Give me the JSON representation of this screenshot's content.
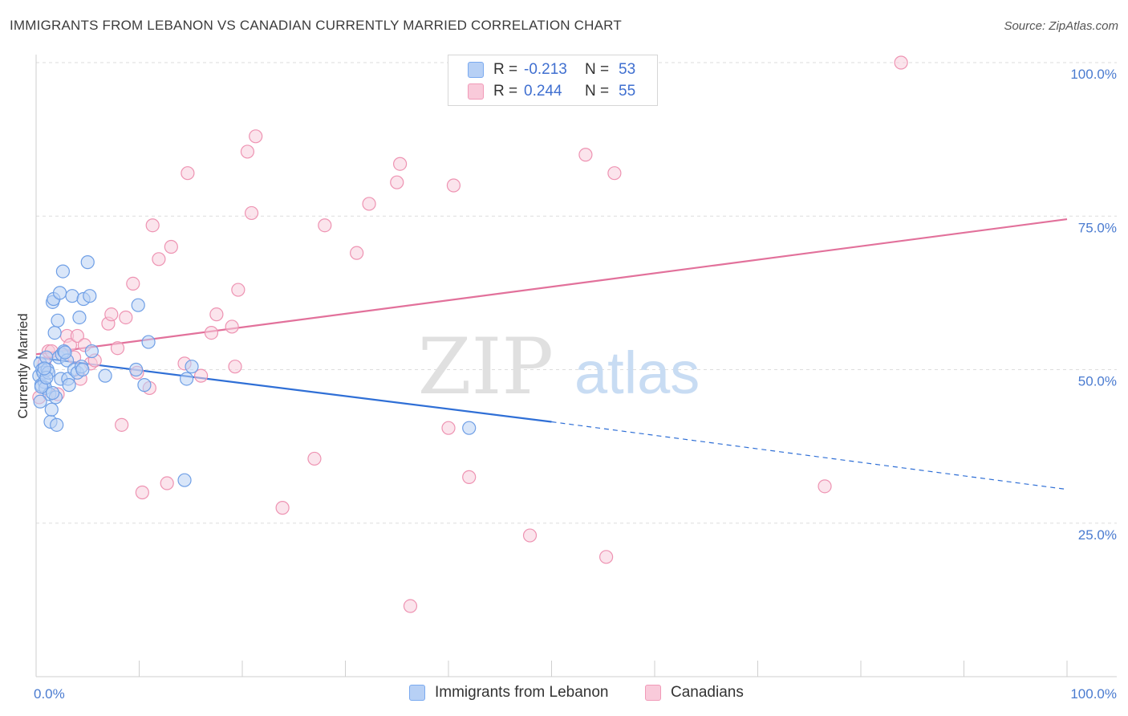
{
  "title": "IMMIGRANTS FROM LEBANON VS CANADIAN CURRENTLY MARRIED CORRELATION CHART",
  "source": "Source: ZipAtlas.com",
  "watermark": {
    "zip": "ZIP",
    "atlas": "atlas"
  },
  "legend": {
    "rows": [
      {
        "r_label": "R =",
        "r_value": "-0.213",
        "n_label": "N =",
        "n_value": "53",
        "color": "#7aaaf0",
        "fill": "#b7d0f5"
      },
      {
        "r_label": "R =",
        "r_value": "0.244",
        "n_label": "N =",
        "n_value": "55",
        "color": "#f19ab8",
        "fill": "#f9cada"
      }
    ]
  },
  "bottom_legend": {
    "series1": "Immigrants from Lebanon",
    "series2": "Canadians"
  },
  "colors": {
    "blue_point_stroke": "#6f9fe6",
    "blue_point_fill": "#b9d1f4",
    "pink_point_stroke": "#ee93b2",
    "pink_point_fill": "#f8cddd",
    "blue_line": "#2f6fd6",
    "pink_line": "#e2719b",
    "tick_text": "#4a7bd0",
    "grid": "#dddddd"
  },
  "chart_data": {
    "type": "scatter",
    "title": "IMMIGRANTS FROM LEBANON VS CANADIAN CURRENTLY MARRIED CORRELATION CHART",
    "xlabel": "",
    "ylabel": "Currently Married",
    "xlim": [
      0,
      100
    ],
    "ylim": [
      0,
      100
    ],
    "x_tick_labels": [
      "0.0%",
      "100.0%"
    ],
    "y_ticks": [
      {
        "value": 25,
        "label": "25.0%"
      },
      {
        "value": 50,
        "label": "50.0%"
      },
      {
        "value": 75,
        "label": "75.0%"
      },
      {
        "value": 100,
        "label": "100.0%"
      }
    ],
    "grid": "horizontal dashed",
    "series": [
      {
        "name": "Immigrants from Lebanon",
        "points": [
          [
            0.3,
            49
          ],
          [
            0.4,
            51
          ],
          [
            0.5,
            47.5
          ],
          [
            0.6,
            50
          ],
          [
            0.7,
            49.5
          ],
          [
            0.8,
            48
          ],
          [
            0.9,
            47
          ],
          [
            1.0,
            52
          ],
          [
            1.1,
            50
          ],
          [
            1.2,
            49.5
          ],
          [
            1.3,
            46
          ],
          [
            1.4,
            41.5
          ],
          [
            1.5,
            43.5
          ],
          [
            1.6,
            61
          ],
          [
            1.7,
            61.5
          ],
          [
            1.8,
            56
          ],
          [
            1.9,
            45.5
          ],
          [
            2.0,
            41
          ],
          [
            2.1,
            58
          ],
          [
            2.2,
            52
          ],
          [
            2.3,
            62.5
          ],
          [
            2.4,
            48.5
          ],
          [
            2.5,
            52.5
          ],
          [
            2.6,
            66
          ],
          [
            2.7,
            53
          ],
          [
            3.0,
            51.5
          ],
          [
            3.1,
            48.5
          ],
          [
            3.2,
            47.5
          ],
          [
            3.5,
            62
          ],
          [
            3.7,
            50
          ],
          [
            4.0,
            49.5
          ],
          [
            4.2,
            58.5
          ],
          [
            4.4,
            50.5
          ],
          [
            4.5,
            50
          ],
          [
            4.6,
            61.5
          ],
          [
            5.0,
            67.5
          ],
          [
            5.2,
            62
          ],
          [
            5.4,
            53
          ],
          [
            6.7,
            49
          ],
          [
            9.7,
            50
          ],
          [
            9.9,
            60.5
          ],
          [
            10.5,
            47.5
          ],
          [
            10.9,
            54.5
          ],
          [
            14.4,
            32
          ],
          [
            14.6,
            48.5
          ],
          [
            15.1,
            50.5
          ],
          [
            42.0,
            40.5
          ],
          [
            0.5,
            47.2
          ],
          [
            1.0,
            48.7
          ],
          [
            0.8,
            50.2
          ],
          [
            1.6,
            46.2
          ],
          [
            2.8,
            52.8
          ],
          [
            0.4,
            44.8
          ]
        ],
        "trend": {
          "x0": 0,
          "y0": 52,
          "x1": 50,
          "y1": 41.5,
          "dashed_to_x": 100,
          "dashed_to_y": 30.5
        }
      },
      {
        "name": "Canadians",
        "points": [
          [
            0.3,
            45.5
          ],
          [
            0.8,
            51
          ],
          [
            1.2,
            53
          ],
          [
            1.5,
            53
          ],
          [
            2.1,
            46
          ],
          [
            2.5,
            52.5
          ],
          [
            3.0,
            55.5
          ],
          [
            3.3,
            54
          ],
          [
            3.7,
            52
          ],
          [
            4.0,
            55.5
          ],
          [
            4.3,
            48.5
          ],
          [
            4.7,
            54
          ],
          [
            5.3,
            51
          ],
          [
            5.7,
            51.5
          ],
          [
            7.0,
            57.5
          ],
          [
            7.3,
            59
          ],
          [
            7.9,
            53.5
          ],
          [
            8.3,
            41
          ],
          [
            8.7,
            58.5
          ],
          [
            9.4,
            64
          ],
          [
            9.8,
            49.5
          ],
          [
            10.3,
            30
          ],
          [
            11.0,
            47
          ],
          [
            11.3,
            73.5
          ],
          [
            11.9,
            68
          ],
          [
            12.7,
            31.5
          ],
          [
            13.1,
            70
          ],
          [
            14.4,
            51
          ],
          [
            14.7,
            82
          ],
          [
            16.0,
            49
          ],
          [
            17.0,
            56
          ],
          [
            17.5,
            59
          ],
          [
            19.0,
            57
          ],
          [
            19.3,
            50.5
          ],
          [
            19.6,
            63
          ],
          [
            20.5,
            85.5
          ],
          [
            20.9,
            75.5
          ],
          [
            21.3,
            88
          ],
          [
            23.9,
            27.5
          ],
          [
            27.0,
            35.5
          ],
          [
            28.0,
            73.5
          ],
          [
            31.1,
            69
          ],
          [
            32.3,
            77
          ],
          [
            35.0,
            80.5
          ],
          [
            35.3,
            83.5
          ],
          [
            36.3,
            11.5
          ],
          [
            40.0,
            40.5
          ],
          [
            40.5,
            80
          ],
          [
            42.0,
            32.5
          ],
          [
            47.9,
            23
          ],
          [
            53.3,
            85
          ],
          [
            55.3,
            19.5
          ],
          [
            56.1,
            82
          ],
          [
            76.5,
            31
          ],
          [
            83.9,
            100
          ]
        ],
        "trend": {
          "x0": 0,
          "y0": 52.5,
          "x1": 100,
          "y1": 74.5
        }
      }
    ]
  }
}
